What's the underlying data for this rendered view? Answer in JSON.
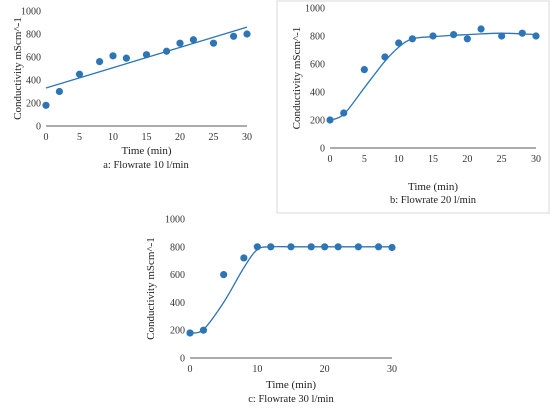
{
  "chart_data": [
    {
      "type": "scatter",
      "xlabel": "Time (min)",
      "ylabel": "Conductivity mScm^-1",
      "caption": "a: Flowrate 10 l/min",
      "xlim": [
        0,
        30
      ],
      "ylim": [
        0,
        1000
      ],
      "xticks": [
        0,
        5,
        10,
        15,
        20,
        25,
        30
      ],
      "yticks": [
        0,
        200,
        400,
        600,
        800,
        1000
      ],
      "grid": false,
      "points": {
        "x": [
          0,
          2,
          5,
          8,
          10,
          12,
          15,
          18,
          20,
          22,
          25,
          28,
          30
        ],
        "y": [
          180,
          300,
          450,
          560,
          610,
          590,
          620,
          650,
          720,
          750,
          720,
          780,
          800
        ]
      },
      "trendline": {
        "kind": "linear",
        "x": [
          0,
          30
        ],
        "y": [
          330,
          860
        ]
      }
    },
    {
      "type": "scatter",
      "xlabel": "Time (min)",
      "ylabel": "Conductivity mScm^-1",
      "caption": "b: Flowrate 20 l/min",
      "xlim": [
        0,
        30
      ],
      "ylim": [
        0,
        1000
      ],
      "xticks": [
        0,
        5,
        10,
        15,
        20,
        25,
        30
      ],
      "yticks": [
        0,
        200,
        400,
        600,
        800,
        1000
      ],
      "grid": false,
      "points": {
        "x": [
          0,
          2,
          5,
          8,
          10,
          12,
          15,
          18,
          20,
          22,
          25,
          28,
          30
        ],
        "y": [
          200,
          250,
          560,
          650,
          750,
          780,
          800,
          810,
          780,
          850,
          800,
          820,
          800
        ]
      },
      "trendline": {
        "kind": "smooth",
        "x": [
          0,
          2,
          5,
          8,
          10,
          12,
          15,
          18,
          20,
          22,
          25,
          28,
          30
        ],
        "y": [
          200,
          240,
          430,
          620,
          720,
          780,
          795,
          805,
          810,
          815,
          820,
          815,
          810
        ]
      }
    },
    {
      "type": "scatter",
      "xlabel": "Time (min)",
      "ylabel": "Conductivity mScm^-1",
      "caption": "c: Flowrate 30 l/min",
      "xlim": [
        0,
        30
      ],
      "ylim": [
        0,
        1000
      ],
      "xticks": [
        0,
        10,
        20,
        30
      ],
      "yticks": [
        0,
        200,
        400,
        600,
        800,
        1000
      ],
      "grid": false,
      "points": {
        "x": [
          0,
          2,
          5,
          8,
          10,
          12,
          15,
          18,
          20,
          22,
          25,
          28,
          30
        ],
        "y": [
          180,
          200,
          600,
          720,
          800,
          800,
          800,
          800,
          800,
          800,
          800,
          800,
          795
        ]
      },
      "trendline": {
        "kind": "smooth",
        "x": [
          0,
          2,
          5,
          8,
          10,
          12,
          15,
          18,
          20,
          22,
          25,
          28,
          30
        ],
        "y": [
          180,
          205,
          400,
          650,
          780,
          800,
          800,
          800,
          800,
          800,
          800,
          800,
          800
        ]
      }
    }
  ],
  "colors": {
    "series": "#2e75b6",
    "axis": "#595959",
    "border": "#d9d9d9"
  }
}
